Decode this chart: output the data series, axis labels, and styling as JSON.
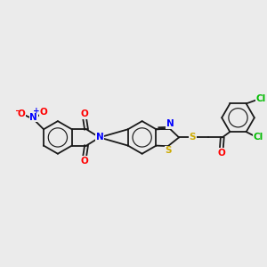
{
  "background_color": "#ebebeb",
  "line_color": "#1a1a1a",
  "atom_colors": {
    "N": "#0000ff",
    "O": "#ff0000",
    "S": "#ccaa00",
    "Cl": "#00bb00",
    "C": "#1a1a1a"
  },
  "lw": 1.3,
  "lw_inner": 0.85,
  "fs": 7.5,
  "fs_small": 5.5
}
